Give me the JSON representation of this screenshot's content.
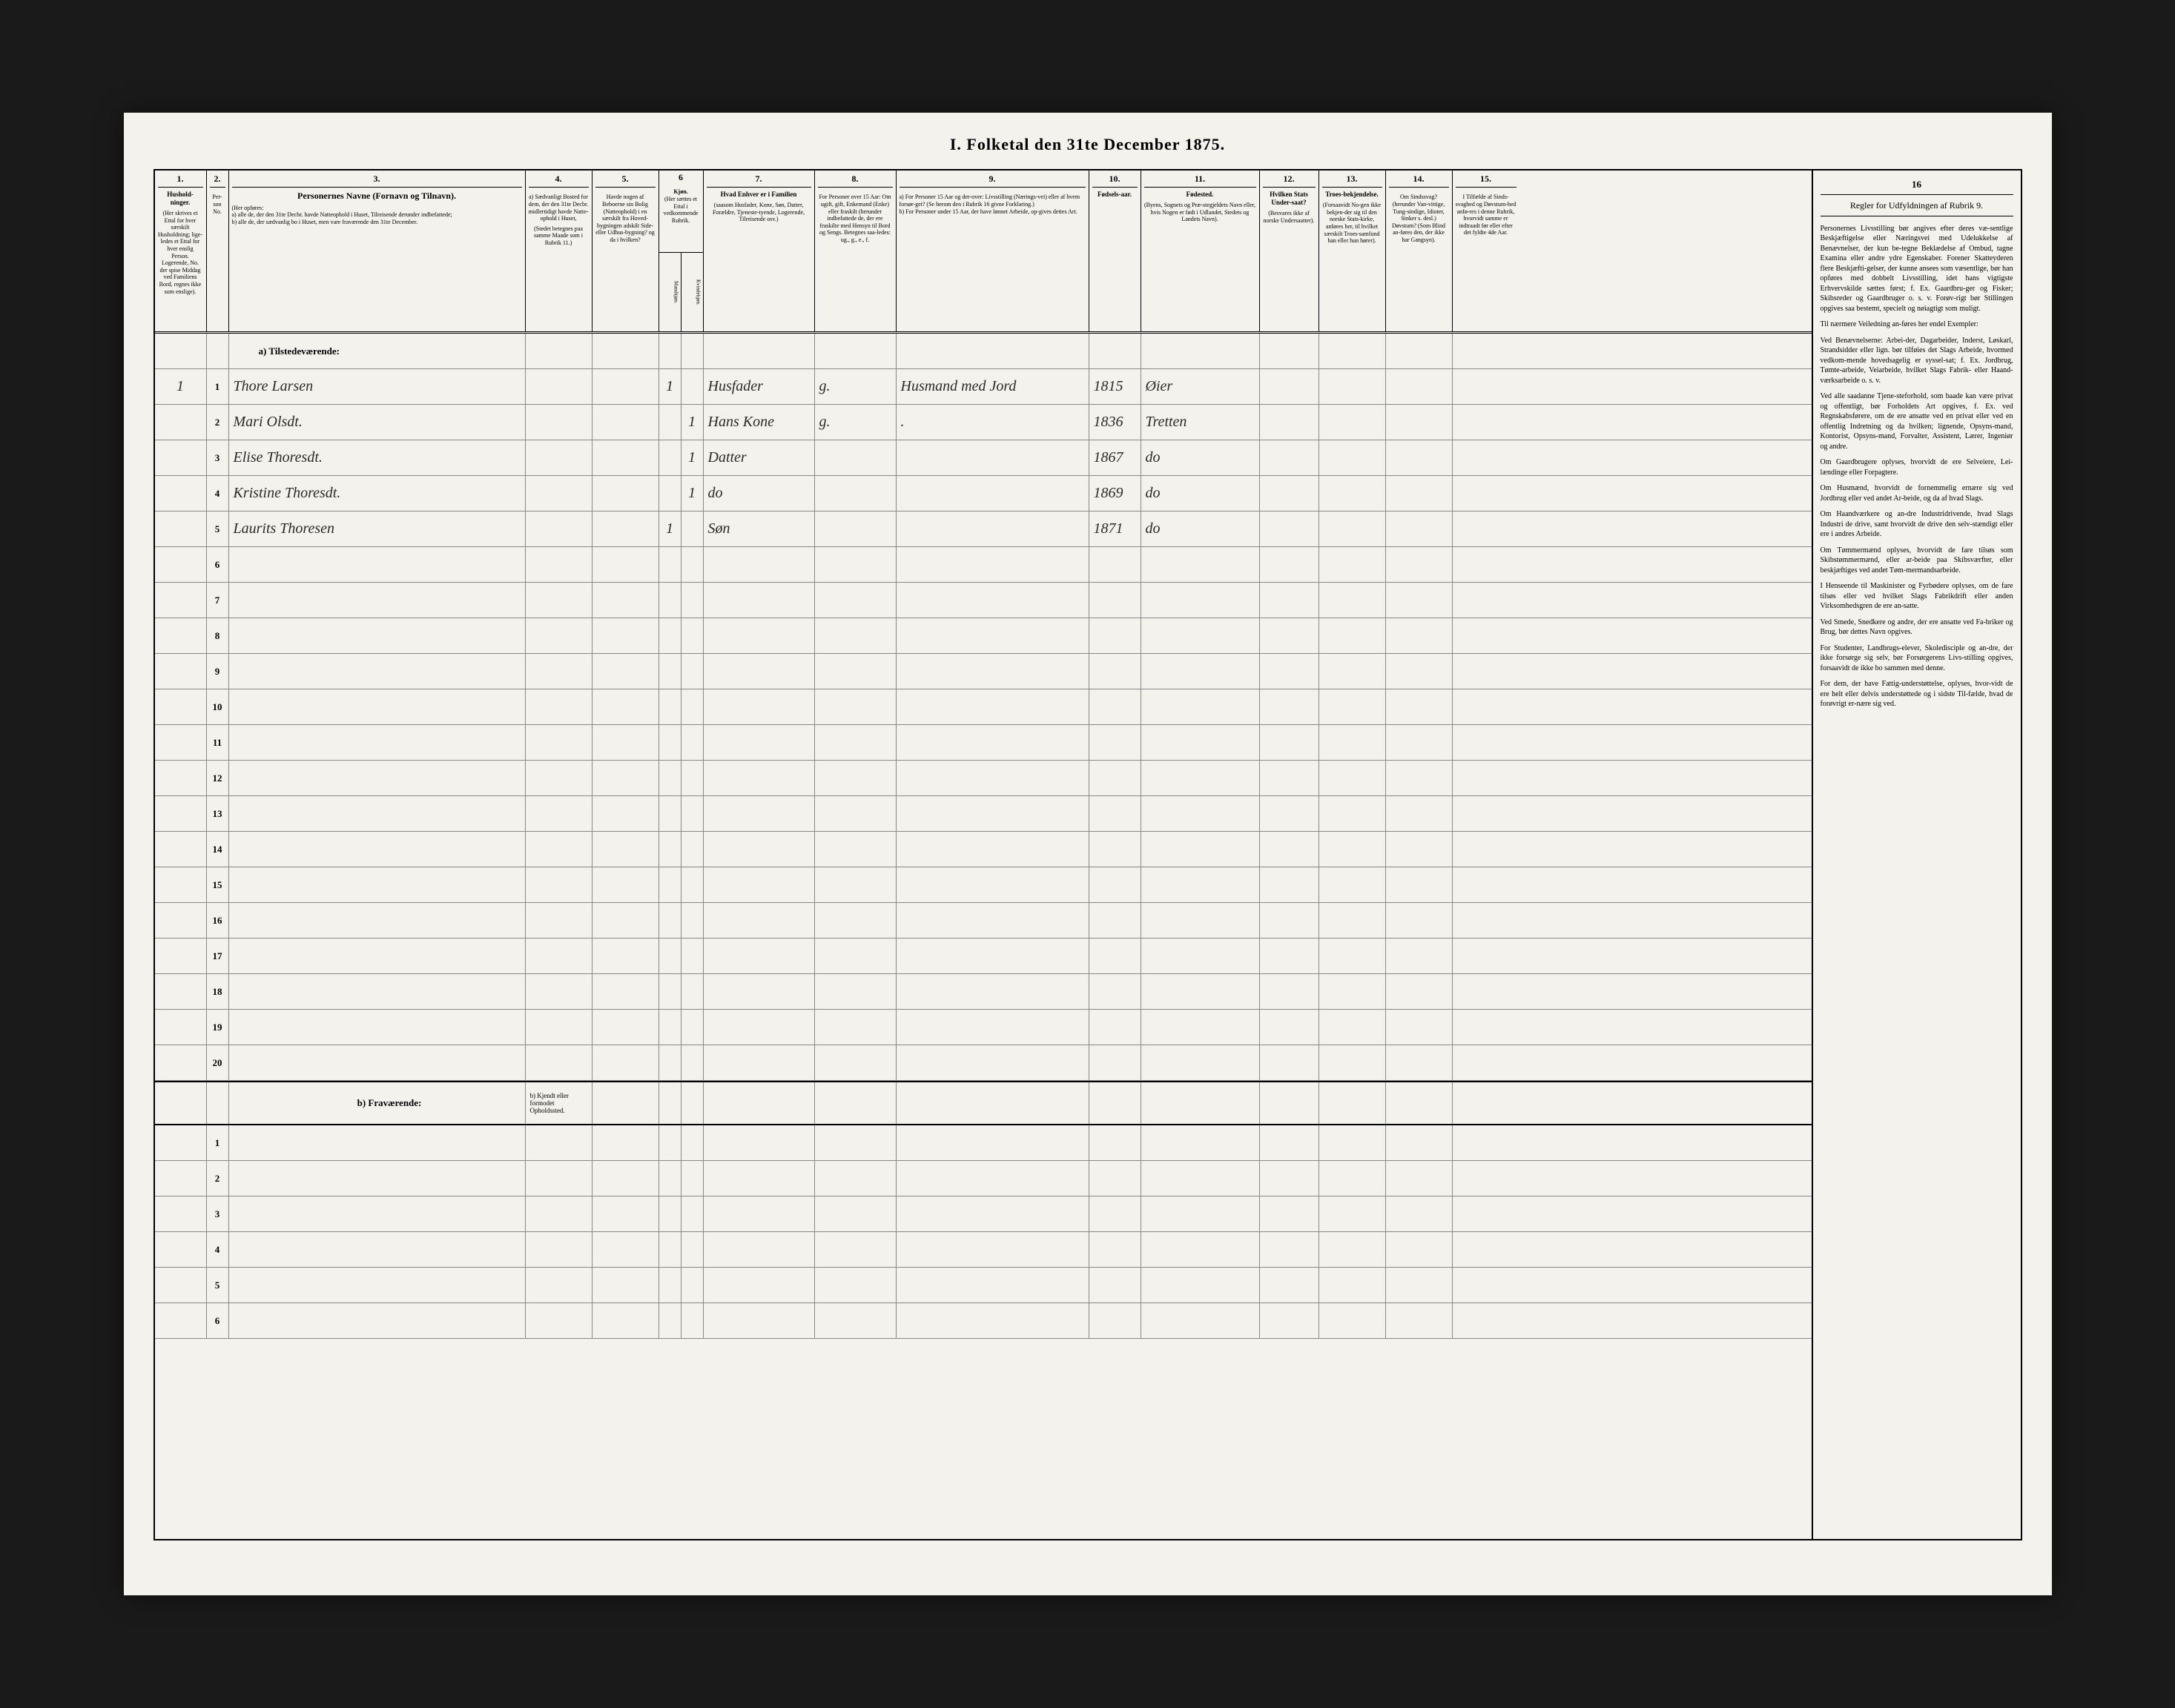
{
  "title": "I. Folketal den 31te December 1875.",
  "columns": {
    "c1": {
      "num": "1.",
      "label": "Hushold-ninger.",
      "sub": "(Her skrives et Ettal for hver særskilt Husholdning; lige-ledes et Ettal for hver enslig Person. Logerende, No. der spise Middag ved Familiens Bord, regnes ikke som enslige)."
    },
    "c2": {
      "num": "2.",
      "label": "Per-son No."
    },
    "c3": {
      "num": "3.",
      "label": "Personernes Navne (Fornavn og Tilnavn).",
      "sub": "(Her opføres:\na) alle de, der den 31te Decbr. havde Natteophold i Huset, Tilreisende derunder indbefattede;\nb) alle de, der sædvanlig bo i Huset, men vare fraværende den 31te December."
    },
    "c4": {
      "num": "4.",
      "label": "a) Sædvanligt Bosted for dem, der den 31te Decbr. midlertidigt havde Natte-ophold i Huset,",
      "sub": "(Stedet betegnes paa samme Maade som i Rubrik 11.)"
    },
    "c5": {
      "num": "5.",
      "label": "Havde nogen af Beboerne sin Bolig (Natteophold) i en særskilt fra Hoved-bygningen adskilt Side- eller Udhus-bygning? og da i hvilken?"
    },
    "c6": {
      "num": "6",
      "label": "Kjøn.",
      "sub": "(Her sættes et Ettal i vedkommende Rubrik.",
      "m": "Mandkjøn.",
      "k": "Kvindekjøn."
    },
    "c7": {
      "num": "7.",
      "label": "Hvad Enhver er i Familien",
      "sub": "(saasom Husfader, Kone, Søn, Datter, Forældre, Tjeneste-tyende, Logerende, Tilreisende osv.)"
    },
    "c8": {
      "num": "8.",
      "label": "For Personer over 15 Aar: Om ugift, gift, Enkemand (Enke) eller fraskilt (herunder indbefattede de, der ere fraskilte med Hensyn til Bord og Sengs. Betegnes saa-ledes: ug., g., e., f."
    },
    "c9": {
      "num": "9.",
      "label": "a) For Personer 15 Aar og der-over: Livsstilling (Nærings-vei) eller af hvem forsør-get? (Se herom den i Rubrik 16 givne Forklaring.)\nb) For Personer under 15 Aar, der have lønnet Arbeide, op-gives dettes Art."
    },
    "c10": {
      "num": "10.",
      "label": "Fødsels-aar."
    },
    "c11": {
      "num": "11.",
      "label": "Fødested.",
      "sub": "(Byens, Sognets og Præ-stegjeldets Navn eller, hvis Nogen er født i Udlandet, Stedets og Landets Navn)."
    },
    "c12": {
      "num": "12.",
      "label": "Hvilken Stats Under-saat?",
      "sub": "(Besvares ikke af norske Undersaatter)."
    },
    "c13": {
      "num": "13.",
      "label": "Troes-bekjendelse.",
      "sub": "(Forsaavidt No-gen ikke bekjen-der sig til den norske Stats-kirke, anføres her, til hvilket særskilt Troes-samfund han eller hun hører)."
    },
    "c14": {
      "num": "14.",
      "label": "Om Sindssvag? (herunder Van-vittige, Tung-sindige, Idioter, Sinker s. desl.) Døvstum? (Som Blind an-føres den, der ikke har Gangsyn)."
    },
    "c15": {
      "num": "15.",
      "label": "I Tilfælde af Sinds-svaghed og Døvstum-hed anfø-res i denne Rubrik, hvorvidt samme er indtraadt før eller efter det fyldte 4de Aar."
    }
  },
  "section_a": "a) Tilstedeværende:",
  "section_b": "b) Fraværende:",
  "section_b_note": "b) Kjendt eller formodet Opholdssted.",
  "entries": [
    {
      "hh": "1",
      "n": "1",
      "name": "Thore Larsen",
      "sex_m": "1",
      "rel": "Husfader",
      "ms": "g.",
      "occ": "Husmand med Jord",
      "yr": "1815",
      "bp": "Øier"
    },
    {
      "hh": "",
      "n": "2",
      "name": "Mari Olsdt.",
      "sex_k": "1",
      "rel": "Hans Kone",
      "ms": "g.",
      "occ": ".",
      "yr": "1836",
      "bp": "Tretten"
    },
    {
      "hh": "",
      "n": "3",
      "name": "Elise Thoresdt.",
      "sex_k": "1",
      "rel": "Datter",
      "ms": "",
      "occ": "",
      "yr": "1867",
      "bp": "do"
    },
    {
      "hh": "",
      "n": "4",
      "name": "Kristine Thoresdt.",
      "sex_k": "1",
      "rel": "do",
      "ms": "",
      "occ": "",
      "yr": "1869",
      "bp": "do"
    },
    {
      "hh": "",
      "n": "5",
      "name": "Laurits Thoresen",
      "sex_m": "1",
      "rel": "Søn",
      "ms": "",
      "occ": "",
      "yr": "1871",
      "bp": "do"
    }
  ],
  "blank_a": [
    "6",
    "7",
    "8",
    "9",
    "10",
    "11",
    "12",
    "13",
    "14",
    "15",
    "16",
    "17",
    "18",
    "19",
    "20"
  ],
  "blank_b": [
    "1",
    "2",
    "3",
    "4",
    "5",
    "6"
  ],
  "sidebar": {
    "num": "16",
    "title": "Regler for Udfyldningen af Rubrik 9.",
    "paras": [
      "Personernes Livsstilling bør angives efter deres væ-sentlige Beskjæftigelse eller Næringsvei med Udelukkelse af Benævnelser, der kun be-tegne Beklædelse af Ombud, tagne Examina eller andre ydre Egenskaber. Forener Skatteyderen flere Beskjæfti-gelser, der kunne ansees som væsentlige, bør han opføres med dobbelt Livsstilling, idet hans vigtigste Erhvervskilde sættes først; f. Ex. Gaardbru-ger og Fisker; Skibsreder og Gaardbruger o. s. v. Forøv-rigt bør Stillingen opgives saa bestemt, specielt og nøiagtigt som muligt.",
      "Til nærmere Veiledning an-føres her endel Exempler:",
      "Ved Benævnelserne: Arbei-der, Dagarbeider, Inderst, Løskarl, Strandsidder eller lign. bør tilføies det Slags Arbeide, hvormed vedkom-mende hovedsagelig er syssel-sat; f. Ex. Jordbrug, Tømte-arbeide, Veiarbeide, hvilket Slags Fabrik- eller Haand-værksarbeide o. s. v.",
      "Ved alle saadanne Tjene-steforhold, som baade kan være privat og offentligt, bør Forholdets Art opgives, f. Ex. ved Regnskabsførere, om de ere ansatte ved en privat eller ved en offentlig Indretning og da hvilken; lignende, Opsyns-mand, Kontorist, Opsyns-mand, Forvalter, Assistent, Lærer, Ingeniør og andre.",
      "Om Gaardbrugere oplyses, hvorvidt de ere Selveiere, Lei-lændinge eller Forpagtere.",
      "Om Husmænd, hvorvidt de fornemmelig ernære sig ved Jordbrug eller ved andet Ar-beide, og da af hvad Slags.",
      "Om Haandværkere og an-dre Industridrivende, hvad Slags Industri de drive, samt hvorvidt de drive den selv-stændigt eller ere i andres Arbeide.",
      "Om Tømmermænd oplyses, hvorvidt de fare tilsøs som Skibstømmermænd, eller ar-beide paa Skibsværfter, eller beskjæftiges ved andet Tøm-mermandsarbeide.",
      "I Henseende til Maskinister og Fyrbødere oplyses, om de fare tilsøs eller ved hvilket Slags Fabrikdrift eller anden Virksomhedsgren de ere an-satte.",
      "Ved Smede, Snedkere og andre, der ere ansatte ved Fa-briker og Brug, bør dettes Navn opgives.",
      "For Studenter, Landbrugs-elever, Skoledisciple og an-dre, der ikke forsørge sig selv, bør Forsørgerens Livs-stilling opgives, forsaavidt de ikke bo sammen med denne.",
      "For dem, der have Fattig-understøttelse, oplyses, hvor-vidt de ere helt eller delvis understøttede og i sidste Til-fælde, hvad de forøvrigt er-nære sig ved."
    ]
  },
  "colors": {
    "page": "#f4f2ed",
    "ink": "#000000",
    "rule": "#888888",
    "hand": "#2a2a2a",
    "bg": "#1a1a1a"
  }
}
